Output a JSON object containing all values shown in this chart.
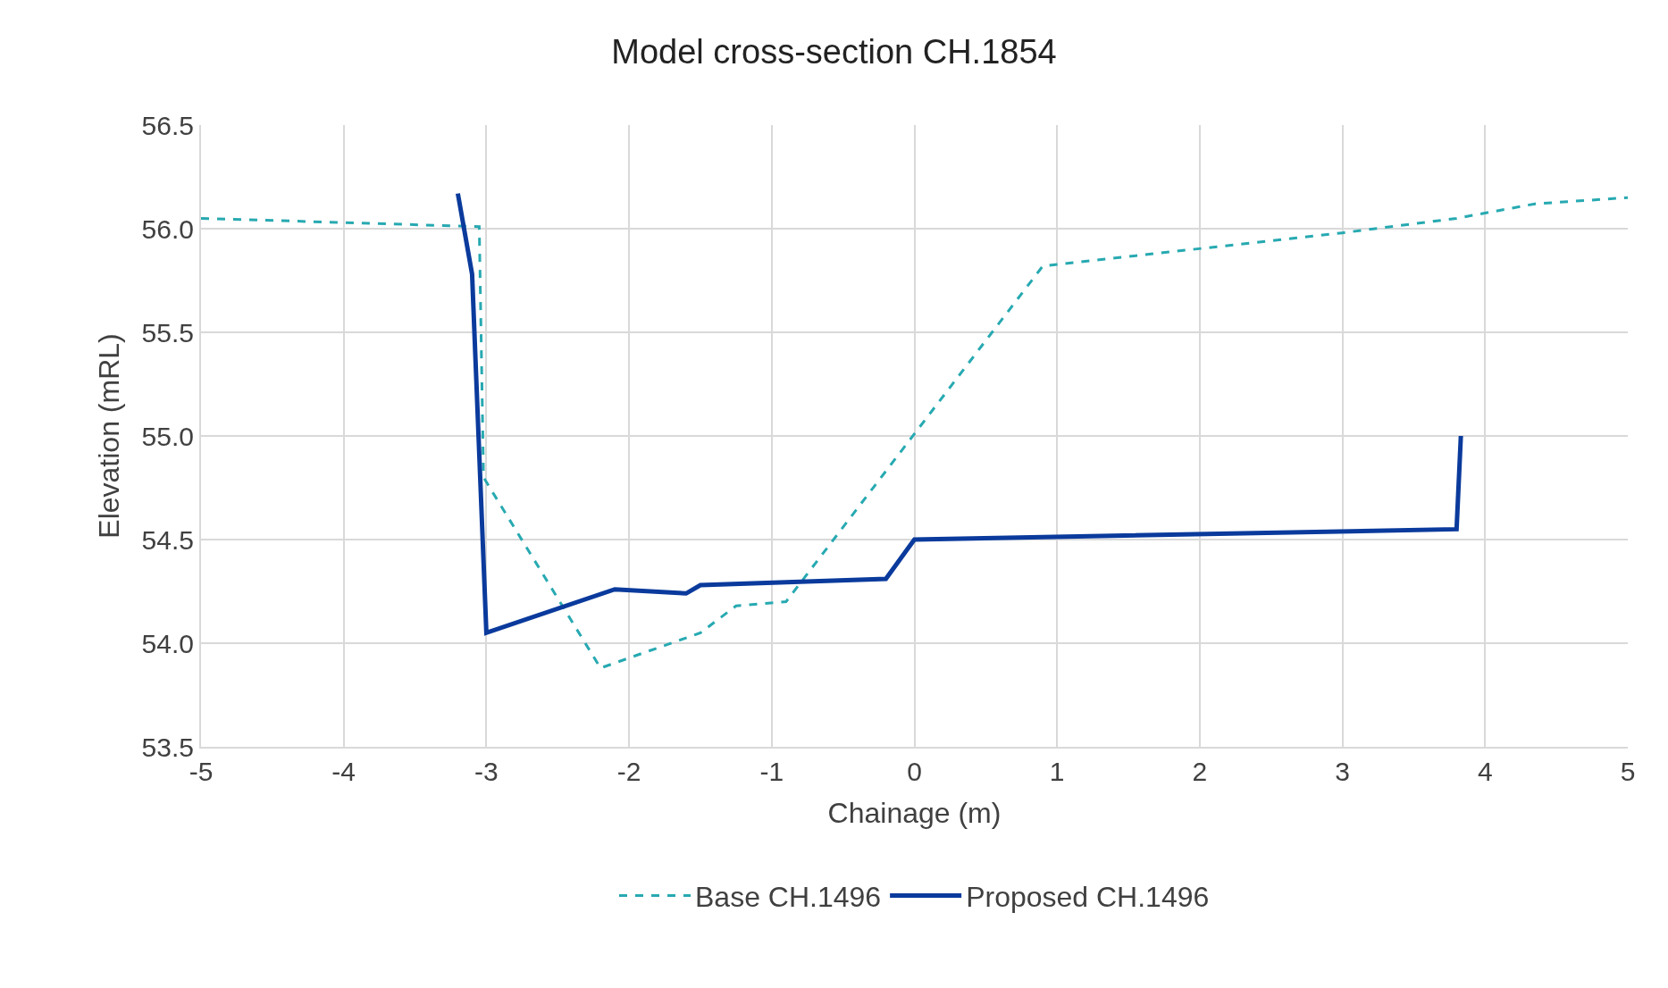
{
  "chart_data": {
    "type": "line",
    "title": "Model cross-section CH.1854",
    "xlabel": "Chainage (m)",
    "ylabel": "Elevation (mRL)",
    "xlim": [
      -5,
      5
    ],
    "xticks": [
      -5,
      -4,
      -3,
      -2,
      -1,
      0,
      1,
      2,
      3,
      4,
      5
    ],
    "ylim": [
      53.5,
      56.5
    ],
    "yticks": [
      {
        "value": 53.5,
        "label": "53.5"
      },
      {
        "value": 54,
        "label": "54.0"
      },
      {
        "value": 54.5,
        "label": "54.5"
      },
      {
        "value": 55,
        "label": "55.0"
      },
      {
        "value": 55.5,
        "label": "55.5"
      },
      {
        "value": 56,
        "label": "56.0"
      },
      {
        "value": 56.5,
        "label": "56.5"
      }
    ],
    "grid": true,
    "legend": "bottom",
    "marker": "none",
    "series": [
      {
        "name": "Base CH.1496",
        "color": "#27a9b1",
        "line_style": "dashed",
        "x": [
          -5,
          -3.05,
          -3.02,
          -2.2,
          -1.5,
          -1.25,
          -0.9,
          0.9,
          3,
          3.8,
          4.35,
          5
        ],
        "values": [
          56.05,
          56.01,
          54.8,
          53.88,
          54.05,
          54.18,
          54.2,
          55.82,
          55.98,
          56.05,
          56.12,
          56.15
        ]
      },
      {
        "name": "Proposed CH.1496",
        "color": "#0a3a9c",
        "line_style": "solid",
        "x": [
          -3.2,
          -3.1,
          -3.0,
          -2.1,
          -1.6,
          -1.5,
          -0.2,
          0,
          3.8,
          3.83
        ],
        "values": [
          56.17,
          55.78,
          54.05,
          54.26,
          54.24,
          54.28,
          54.31,
          54.5,
          54.55,
          55.0
        ]
      }
    ]
  }
}
